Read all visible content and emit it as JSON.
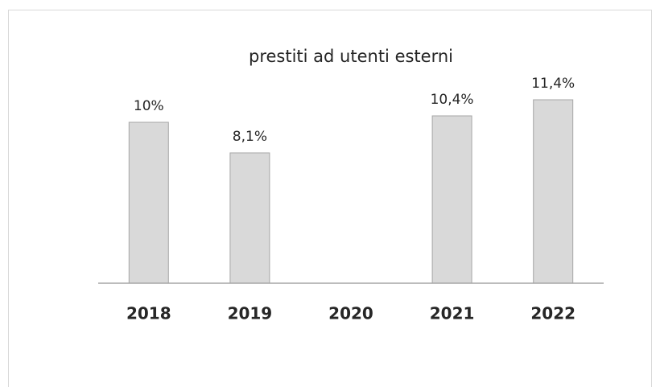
{
  "chart_data": {
    "type": "bar",
    "title": "prestiti ad utenti esterni",
    "categories": [
      "2018",
      "2019",
      "2020",
      "2021",
      "2022"
    ],
    "values": [
      10,
      8.1,
      null,
      10.4,
      11.4
    ],
    "value_labels": [
      "10%",
      "8,1%",
      null,
      "10,4%",
      "11,4%"
    ],
    "color": "#d9d9d9"
  }
}
